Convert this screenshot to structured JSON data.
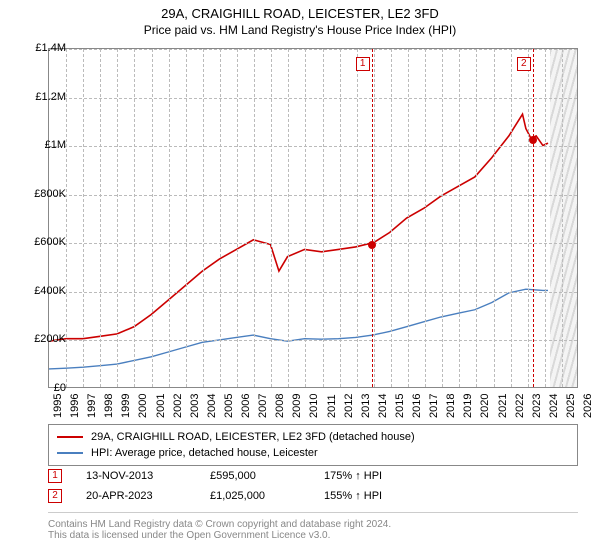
{
  "title": {
    "line1": "29A, CRAIGHILL ROAD, LEICESTER, LE2 3FD",
    "line2": "Price paid vs. HM Land Registry's House Price Index (HPI)"
  },
  "chart": {
    "type": "line",
    "background_color": "#ffffff",
    "border_color": "#888888",
    "grid_color": "#bbbbbb",
    "xlim": [
      1995,
      2026
    ],
    "ylim": [
      0,
      1400000
    ],
    "ytick_step": 200000,
    "yticks": [
      "£0",
      "£200K",
      "£400K",
      "£600K",
      "£800K",
      "£1M",
      "£1.2M",
      "£1.4M"
    ],
    "xticks": [
      1995,
      1996,
      1997,
      1998,
      1999,
      2000,
      2001,
      2002,
      2003,
      2004,
      2005,
      2006,
      2007,
      2008,
      2009,
      2010,
      2011,
      2012,
      2013,
      2014,
      2015,
      2016,
      2017,
      2018,
      2019,
      2020,
      2021,
      2022,
      2023,
      2024,
      2025,
      2026
    ],
    "forecast_start": 2024.3,
    "series": [
      {
        "name": "price_paid",
        "color": "#cc0000",
        "width": 1.6,
        "points": [
          [
            1995,
            190000
          ],
          [
            1996,
            200000
          ],
          [
            1997,
            200000
          ],
          [
            1998,
            210000
          ],
          [
            1999,
            220000
          ],
          [
            2000,
            250000
          ],
          [
            2001,
            300000
          ],
          [
            2002,
            360000
          ],
          [
            2003,
            420000
          ],
          [
            2004,
            480000
          ],
          [
            2005,
            530000
          ],
          [
            2006,
            570000
          ],
          [
            2007,
            610000
          ],
          [
            2008,
            590000
          ],
          [
            2008.5,
            480000
          ],
          [
            2009,
            540000
          ],
          [
            2010,
            570000
          ],
          [
            2011,
            560000
          ],
          [
            2012,
            570000
          ],
          [
            2013,
            580000
          ],
          [
            2013.87,
            595000
          ],
          [
            2014,
            595000
          ],
          [
            2015,
            640000
          ],
          [
            2016,
            700000
          ],
          [
            2017,
            740000
          ],
          [
            2018,
            790000
          ],
          [
            2019,
            830000
          ],
          [
            2020,
            870000
          ],
          [
            2021,
            950000
          ],
          [
            2022,
            1040000
          ],
          [
            2022.8,
            1130000
          ],
          [
            2023,
            1070000
          ],
          [
            2023.3,
            1030000
          ],
          [
            2023.6,
            1040000
          ],
          [
            2024,
            1000000
          ],
          [
            2024.3,
            1010000
          ]
        ]
      },
      {
        "name": "hpi",
        "color": "#4a7fbf",
        "width": 1.4,
        "points": [
          [
            1995,
            75000
          ],
          [
            1996,
            78000
          ],
          [
            1997,
            82000
          ],
          [
            1998,
            88000
          ],
          [
            1999,
            95000
          ],
          [
            2000,
            110000
          ],
          [
            2001,
            125000
          ],
          [
            2002,
            145000
          ],
          [
            2003,
            165000
          ],
          [
            2004,
            185000
          ],
          [
            2005,
            195000
          ],
          [
            2006,
            205000
          ],
          [
            2007,
            215000
          ],
          [
            2008,
            200000
          ],
          [
            2009,
            190000
          ],
          [
            2010,
            200000
          ],
          [
            2011,
            198000
          ],
          [
            2012,
            200000
          ],
          [
            2013,
            205000
          ],
          [
            2014,
            215000
          ],
          [
            2015,
            230000
          ],
          [
            2016,
            250000
          ],
          [
            2017,
            270000
          ],
          [
            2018,
            290000
          ],
          [
            2019,
            305000
          ],
          [
            2020,
            320000
          ],
          [
            2021,
            350000
          ],
          [
            2022,
            390000
          ],
          [
            2023,
            405000
          ],
          [
            2024,
            400000
          ],
          [
            2024.3,
            400000
          ]
        ]
      }
    ],
    "reference_lines": [
      {
        "id": 1,
        "x": 2013.87,
        "color": "#cc0000",
        "marker_y": 595000
      },
      {
        "id": 2,
        "x": 2023.3,
        "color": "#cc0000",
        "marker_y": 1025000
      }
    ],
    "label_fontsize": 11
  },
  "legend": {
    "items": [
      {
        "color": "#cc0000",
        "label": "29A, CRAIGHILL ROAD, LEICESTER, LE2 3FD (detached house)"
      },
      {
        "color": "#4a7fbf",
        "label": "HPI: Average price, detached house, Leicester"
      }
    ]
  },
  "annotations": [
    {
      "id": "1",
      "color": "#cc0000",
      "date": "13-NOV-2013",
      "price": "£595,000",
      "delta": "175% ↑ HPI"
    },
    {
      "id": "2",
      "color": "#cc0000",
      "date": "20-APR-2023",
      "price": "£1,025,000",
      "delta": "155% ↑ HPI"
    }
  ],
  "credits": {
    "line1": "Contains HM Land Registry data © Crown copyright and database right 2024.",
    "line2": "This data is licensed under the Open Government Licence v3.0."
  }
}
